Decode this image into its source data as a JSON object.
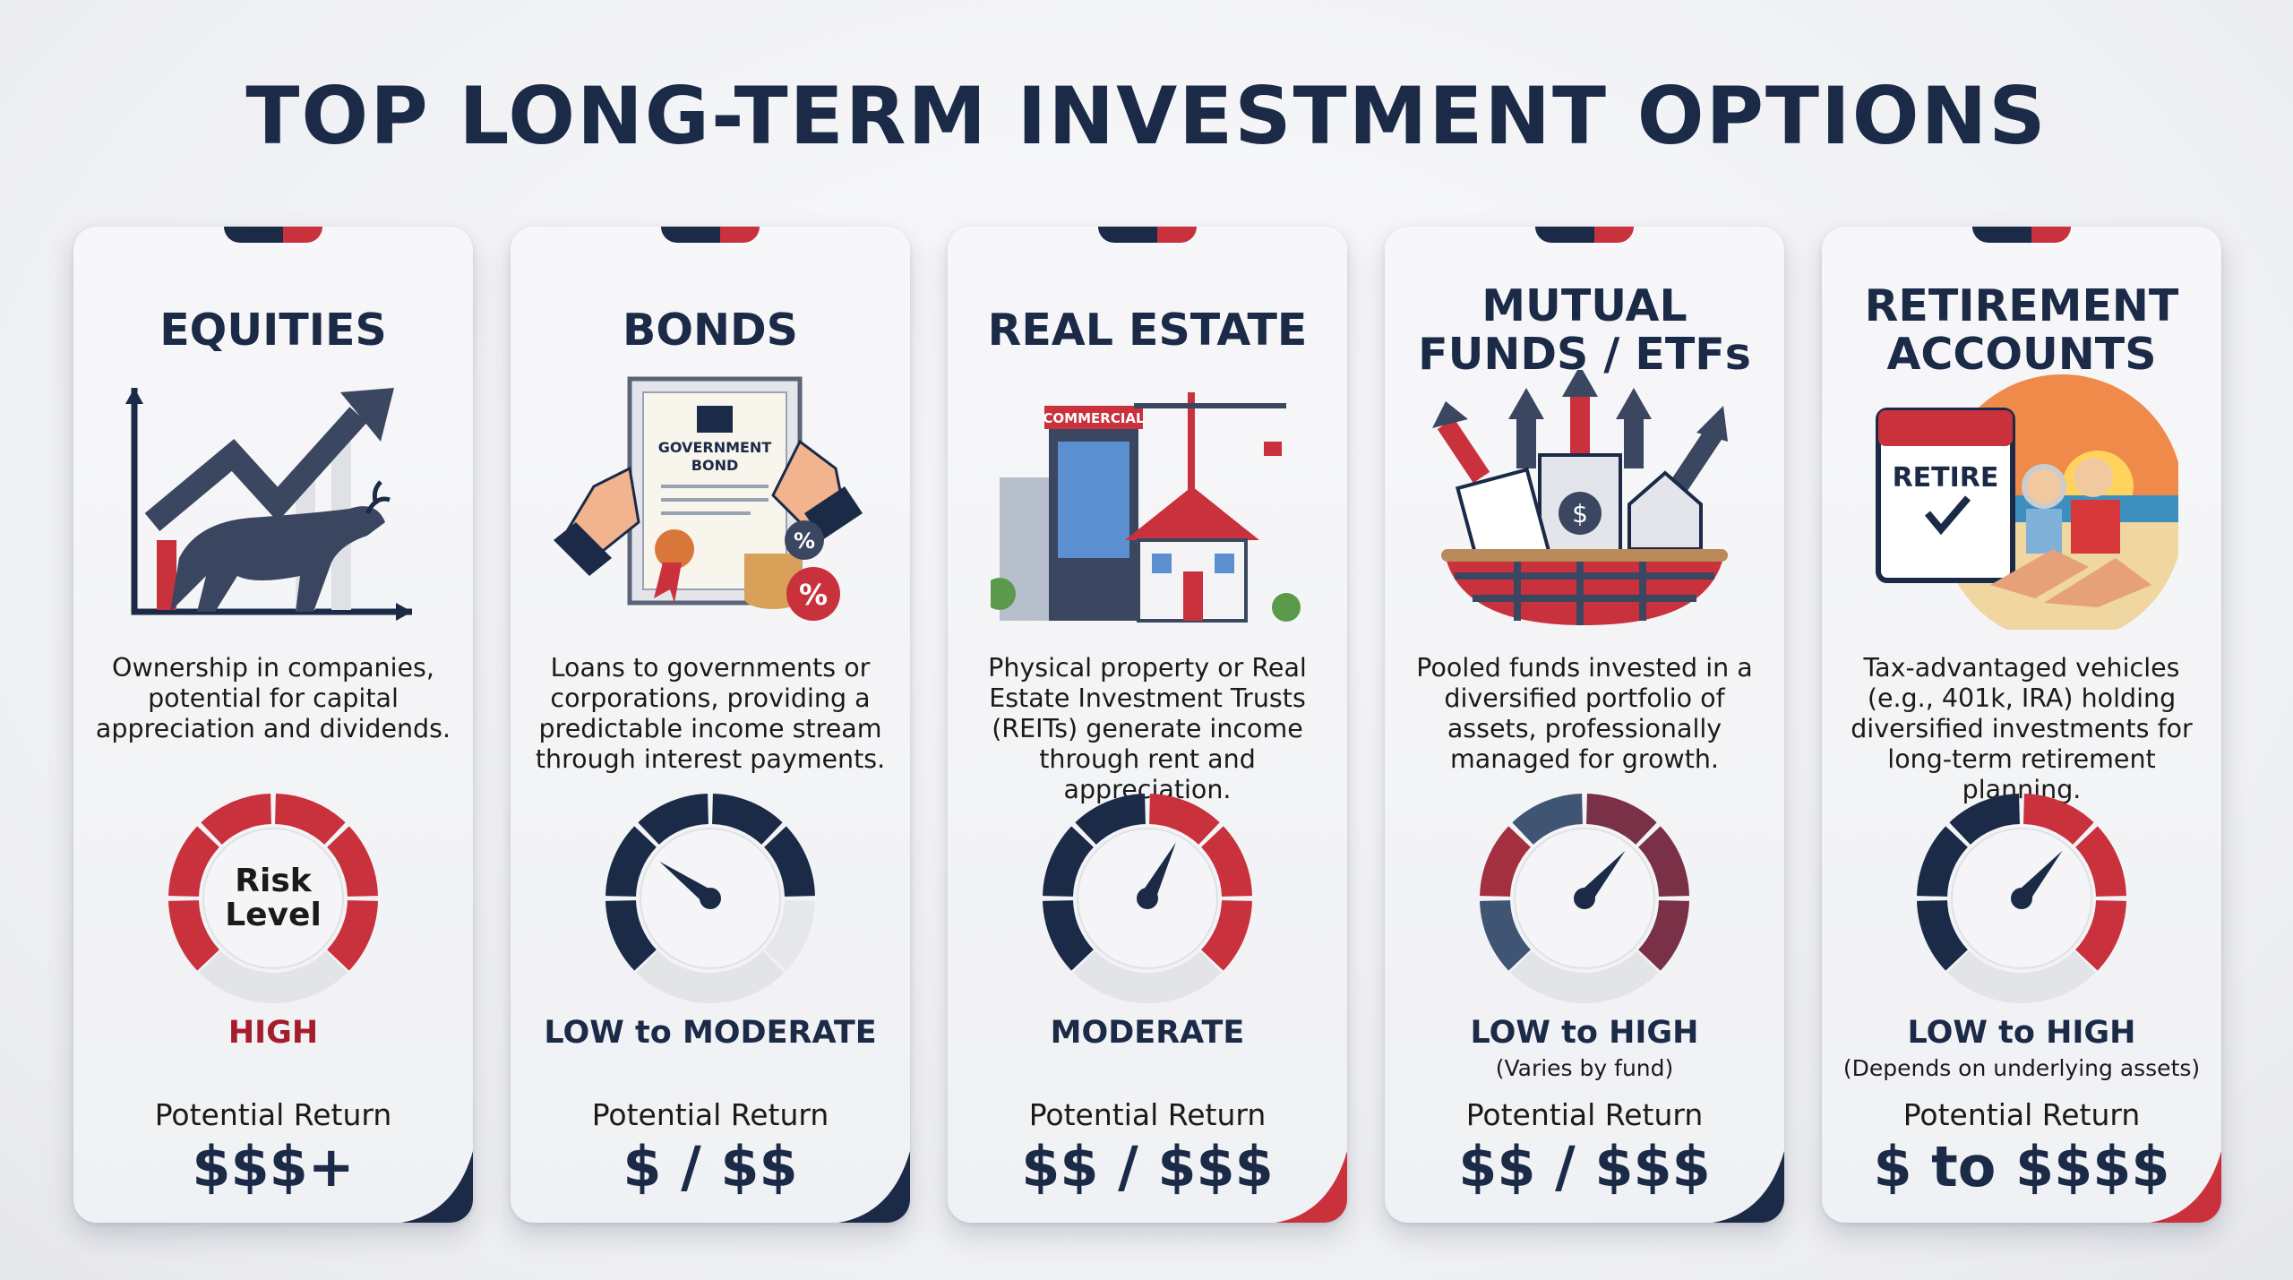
{
  "title": "TOP LONG-TERM INVESTMENT OPTIONS",
  "colors": {
    "navy": "#1b2a47",
    "red": "#c9313d",
    "high_text": "#a51d2a"
  },
  "cards": [
    {
      "title": "EQUITIES",
      "icon": "bull-market-chart-icon",
      "description": "Ownership in companies,\npotential for capital\nappreciation and dividends.",
      "gauge_label": "Risk\nLevel",
      "gauge_segments": [
        "#c9313d",
        "#c9313d",
        "#c9313d",
        "#c9313d",
        "#c9313d",
        "#c9313d"
      ],
      "needle_level": null,
      "risk": "HIGH",
      "risk_color": "#a51d2a",
      "risk_note": "",
      "return_label": "Potential Return",
      "return_value": "$$$+",
      "corner": "#1b2a47"
    },
    {
      "title": "BONDS",
      "icon": "government-bond-certificate-icon",
      "description": "Loans to governments or\ncorporations, providing a\npredictable income stream\nthrough interest payments.",
      "gauge_label": "",
      "gauge_segments": [
        "#1b2a47",
        "#1b2a47",
        "#1b2a47",
        "#1b2a47",
        "#1b2a47",
        "#e6e7eb"
      ],
      "needle_level": 0.3,
      "risk": "LOW to MODERATE",
      "risk_color": "#1b2a47",
      "risk_note": "",
      "return_label": "Potential Return",
      "return_value": "$ / $$",
      "corner": "#1b2a47"
    },
    {
      "title": "REAL ESTATE",
      "icon": "commercial-buildings-house-icon",
      "description": "Physical property or Real\nEstate Investment Trusts\n(REITs) generate income\nthrough rent and appreciation.",
      "gauge_label": "",
      "gauge_segments": [
        "#1b2a47",
        "#1b2a47",
        "#1b2a47",
        "#c9313d",
        "#c9313d",
        "#c9313d"
      ],
      "needle_level": 0.6,
      "risk": "MODERATE",
      "risk_color": "#1b2a47",
      "risk_note": "",
      "return_label": "Potential Return",
      "return_value": "$$ / $$$",
      "corner": "#c9313d"
    },
    {
      "title": "MUTUAL\nFUNDS / ETFs",
      "icon": "diversified-basket-icon",
      "description": "Pooled funds invested in a\ndiversified portfolio of\nassets, professionally\nmanaged for growth.",
      "gauge_label": "",
      "gauge_segments": [
        "#3f5573",
        "#a3303f",
        "#3f5573",
        "#7a3046",
        "#7a3046",
        "#7a3046"
      ],
      "needle_level": 0.65,
      "risk": "LOW to HIGH",
      "risk_color": "#1b2a47",
      "risk_note": "(Varies by fund)",
      "return_label": "Potential Return",
      "return_value": "$$ / $$$",
      "corner": "#1b2a47"
    },
    {
      "title": "RETIREMENT\nACCOUNTS",
      "icon": "retirement-calendar-beach-icon",
      "description": "Tax-advantaged vehicles\n(e.g., 401k, IRA) holding\ndiversified investments for\nlong-term retirement planning.",
      "gauge_label": "",
      "gauge_segments": [
        "#1b2a47",
        "#1b2a47",
        "#1b2a47",
        "#c9313d",
        "#c9313d",
        "#c9313d"
      ],
      "needle_level": 0.65,
      "risk": "LOW to HIGH",
      "risk_color": "#1b2a47",
      "risk_note": "(Depends on underlying assets)",
      "return_label": "Potential Return",
      "return_value": "$ to $$$$",
      "corner": "#c9313d"
    }
  ]
}
